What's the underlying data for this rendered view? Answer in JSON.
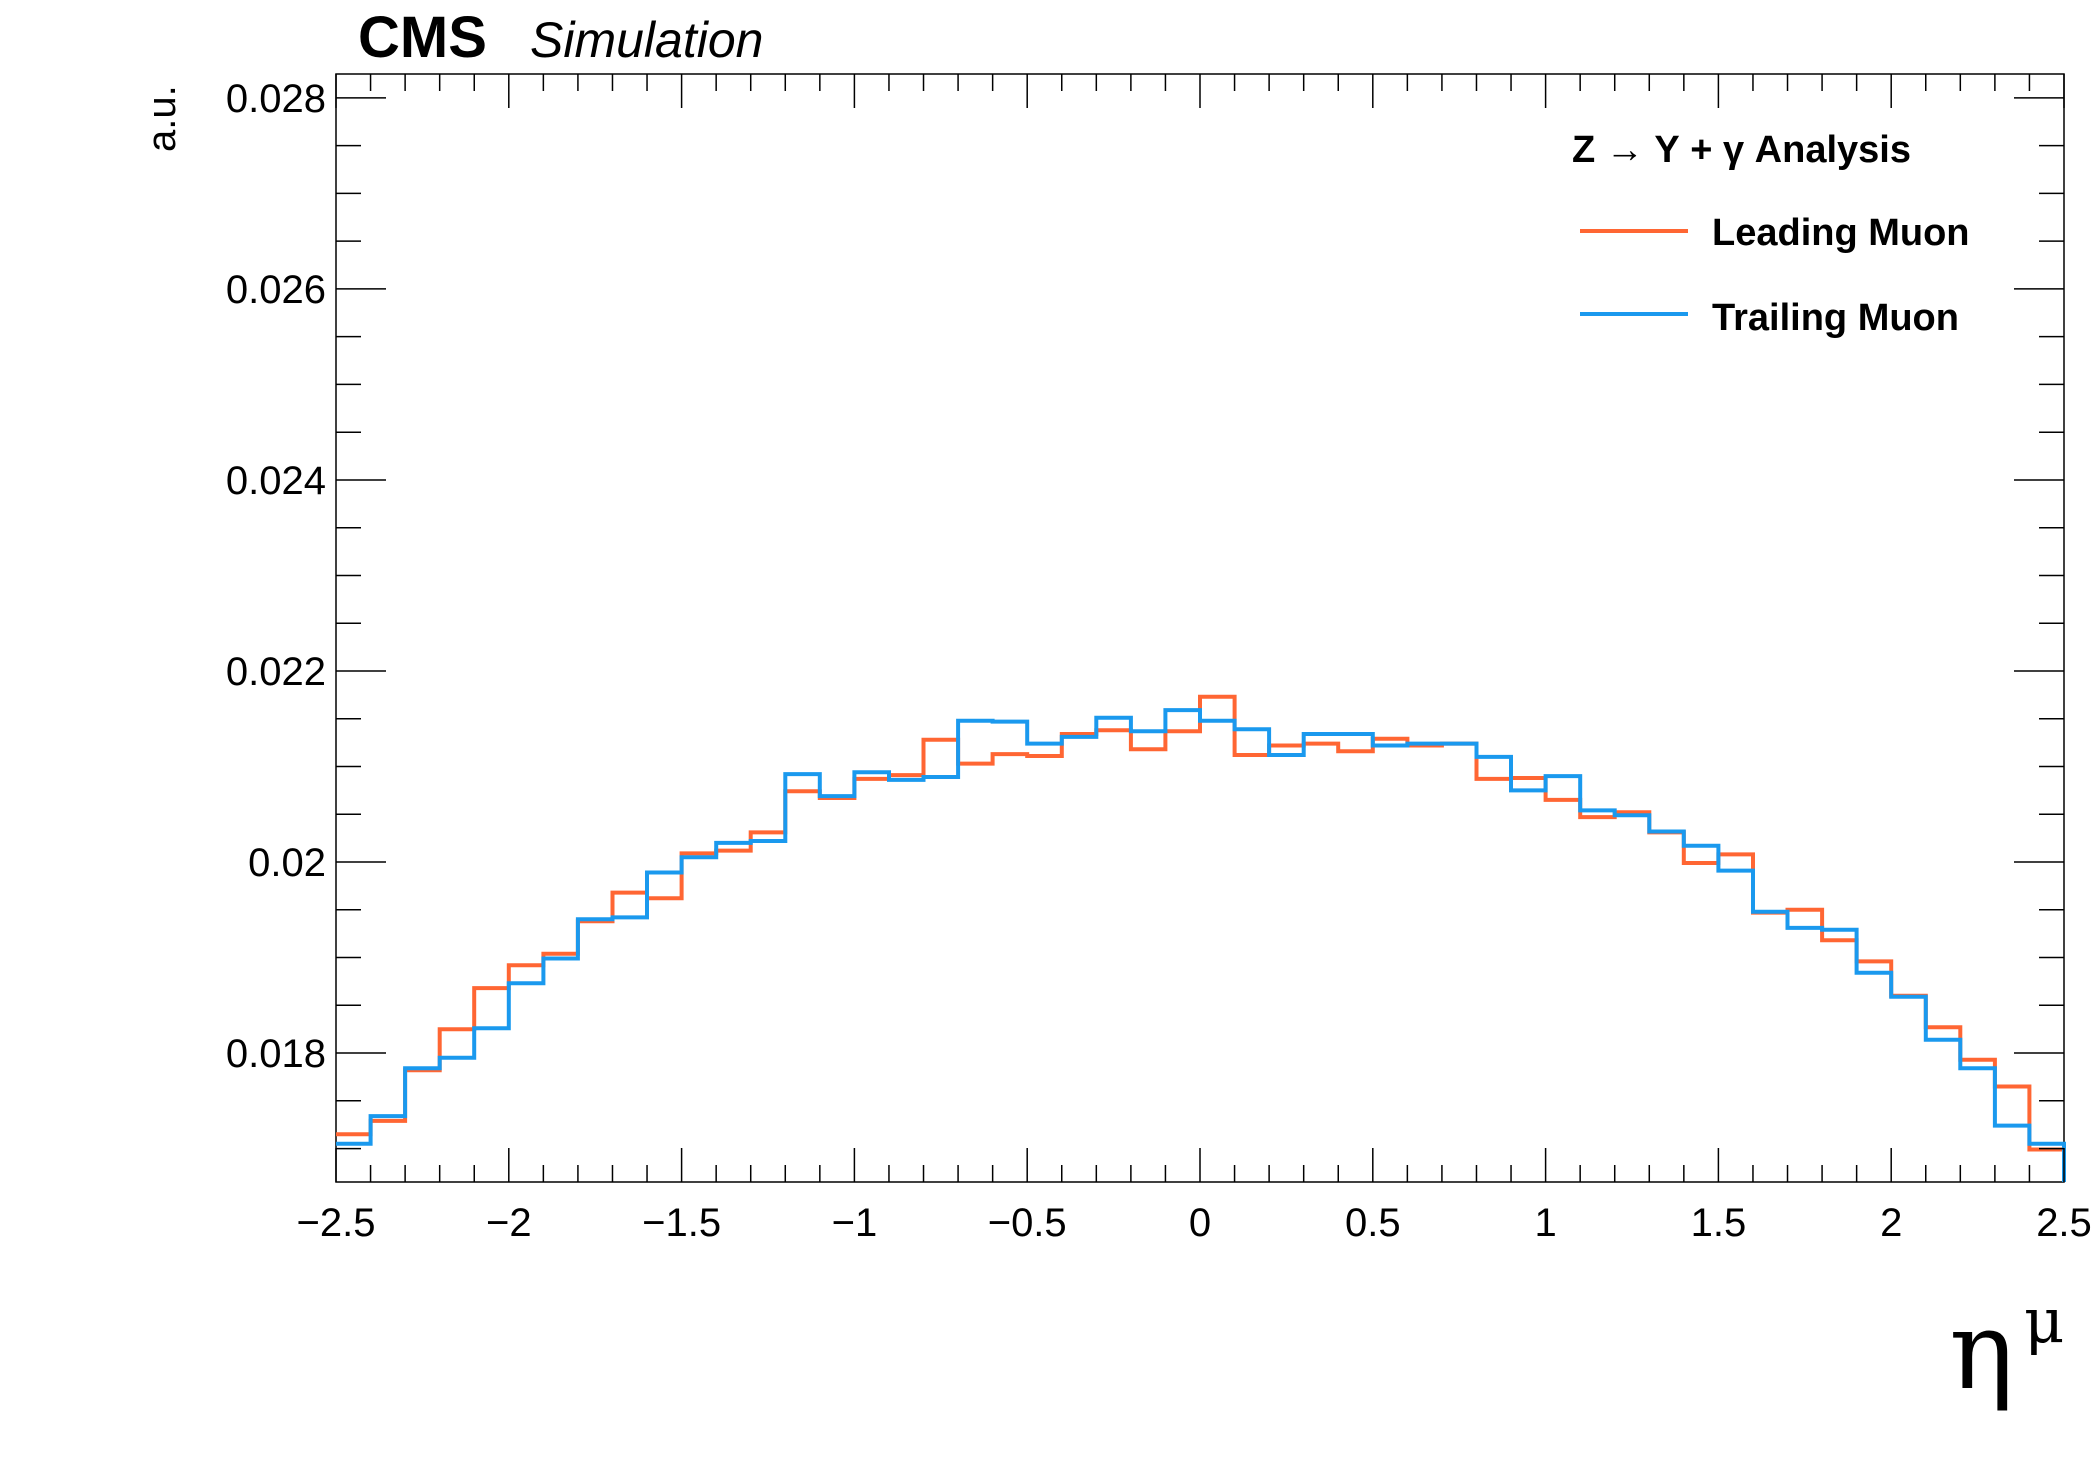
{
  "header": {
    "experiment": "CMS",
    "status": "Simulation"
  },
  "legend": {
    "title": "Z → Υ + γ Analysis",
    "placement": "top-right"
  },
  "chart_data": {
    "type": "line",
    "style": "step-histogram",
    "xlabel_main": "η",
    "xlabel_sup": "μ",
    "ylabel": "a.u.",
    "xlim": [
      -2.5,
      2.5
    ],
    "ylim": [
      0.01665,
      0.02825
    ],
    "x_ticks": [
      -2.5,
      -2,
      -1.5,
      -1,
      -0.5,
      0,
      0.5,
      1,
      1.5,
      2,
      2.5
    ],
    "x_tick_labels": [
      "−2.5",
      "−2",
      "−1.5",
      "−1",
      "−0.5",
      "0",
      "0.5",
      "1",
      "1.5",
      "2",
      "2.5"
    ],
    "y_ticks": [
      0.018,
      0.02,
      0.022,
      0.024,
      0.026,
      0.028
    ],
    "y_tick_labels": [
      "0.018",
      "0.02",
      "0.022",
      "0.024",
      "0.026",
      "0.028"
    ],
    "grid": false,
    "bin_edges": [
      -2.5,
      -2.4,
      -2.3,
      -2.2,
      -2.1,
      -2.0,
      -1.9,
      -1.8,
      -1.7,
      -1.6,
      -1.5,
      -1.4,
      -1.3,
      -1.2,
      -1.1,
      -1.0,
      -0.9,
      -0.8,
      -0.7,
      -0.6,
      -0.5,
      -0.4,
      -0.3,
      -0.2,
      -0.1,
      0.0,
      0.1,
      0.2,
      0.3,
      0.4,
      0.5,
      0.6,
      0.7,
      0.8,
      0.9,
      1.0,
      1.1,
      1.2,
      1.3,
      1.4,
      1.5,
      1.6,
      1.7,
      1.8,
      1.9,
      2.0,
      2.1,
      2.2,
      2.3,
      2.4,
      2.5
    ],
    "series": [
      {
        "name": "Leading Muon",
        "color": "#ff6633",
        "values": [
          0.01715,
          0.01729,
          0.01782,
          0.01825,
          0.01868,
          0.01892,
          0.01904,
          0.01938,
          0.01968,
          0.01962,
          0.02009,
          0.02012,
          0.02031,
          0.02074,
          0.02067,
          0.02087,
          0.02091,
          0.02128,
          0.02103,
          0.02113,
          0.02111,
          0.02134,
          0.02138,
          0.02118,
          0.02137,
          0.02173,
          0.02112,
          0.02122,
          0.02124,
          0.02116,
          0.02129,
          0.02122,
          0.02124,
          0.02087,
          0.02088,
          0.02065,
          0.02047,
          0.02052,
          0.02031,
          0.01999,
          0.02008,
          0.01947,
          0.0195,
          0.01918,
          0.01896,
          0.0186,
          0.01827,
          0.01793,
          0.01765,
          0.01699
        ]
      },
      {
        "name": "Trailing Muon",
        "color": "#1a99ee",
        "values": [
          0.01705,
          0.01734,
          0.01784,
          0.01795,
          0.01826,
          0.01873,
          0.01899,
          0.0194,
          0.01942,
          0.01989,
          0.02005,
          0.0202,
          0.02022,
          0.02092,
          0.02069,
          0.02094,
          0.02086,
          0.02089,
          0.02148,
          0.02147,
          0.02124,
          0.02131,
          0.02151,
          0.02137,
          0.02159,
          0.02148,
          0.02139,
          0.02112,
          0.02134,
          0.02134,
          0.02122,
          0.02124,
          0.02124,
          0.0211,
          0.02075,
          0.0209,
          0.02054,
          0.02049,
          0.02032,
          0.02017,
          0.01991,
          0.01948,
          0.01931,
          0.01929,
          0.01884,
          0.01859,
          0.01814,
          0.01784,
          0.01724,
          0.01705
        ]
      }
    ]
  }
}
